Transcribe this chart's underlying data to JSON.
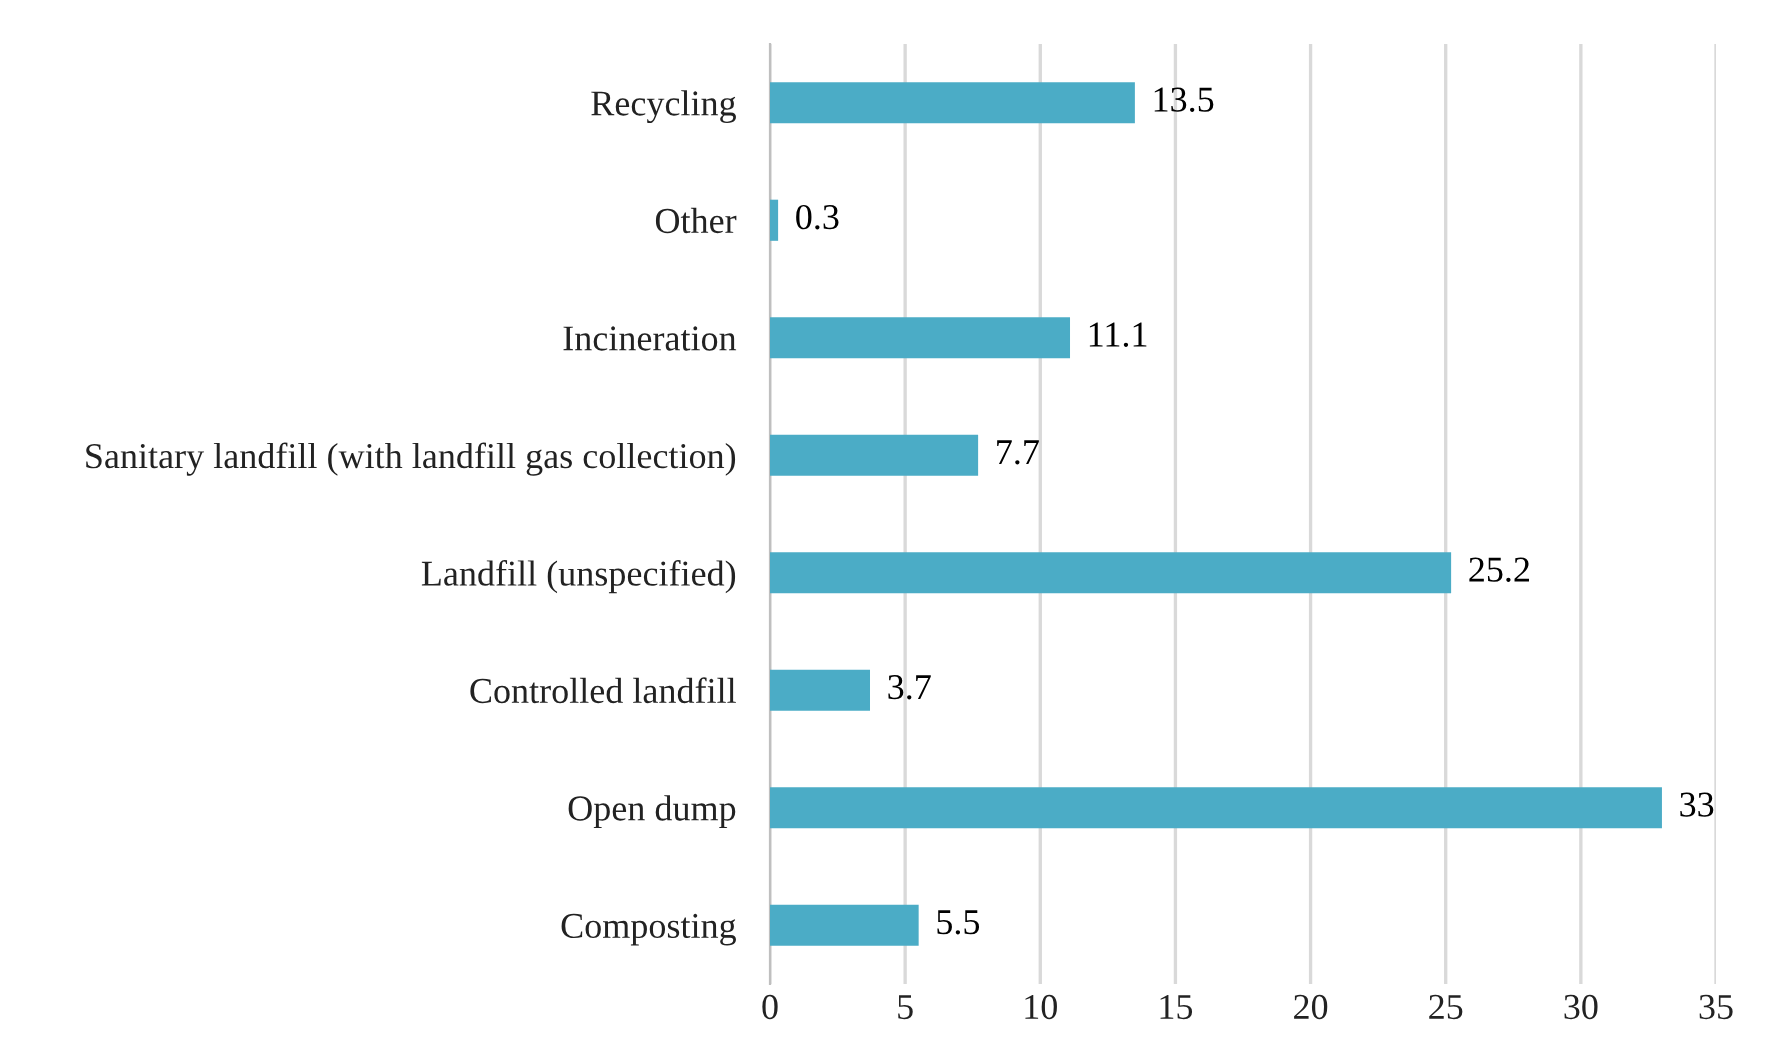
{
  "chart_data": {
    "type": "bar",
    "orientation": "horizontal",
    "categories": [
      "Recycling",
      "Other",
      "Incineration",
      "Sanitary landfill (with landfill gas collection)",
      "Landfill (unspecified)",
      "Controlled landfill",
      "Open dump",
      "Composting"
    ],
    "values": [
      13.5,
      0.3,
      11.1,
      7.7,
      25.2,
      3.7,
      33,
      5.5
    ],
    "color": "#4bacc6",
    "xlim": [
      0,
      35
    ],
    "xticks": [
      0,
      5,
      10,
      15,
      20,
      25,
      30,
      35
    ],
    "grid": "x",
    "data_labels": true
  }
}
